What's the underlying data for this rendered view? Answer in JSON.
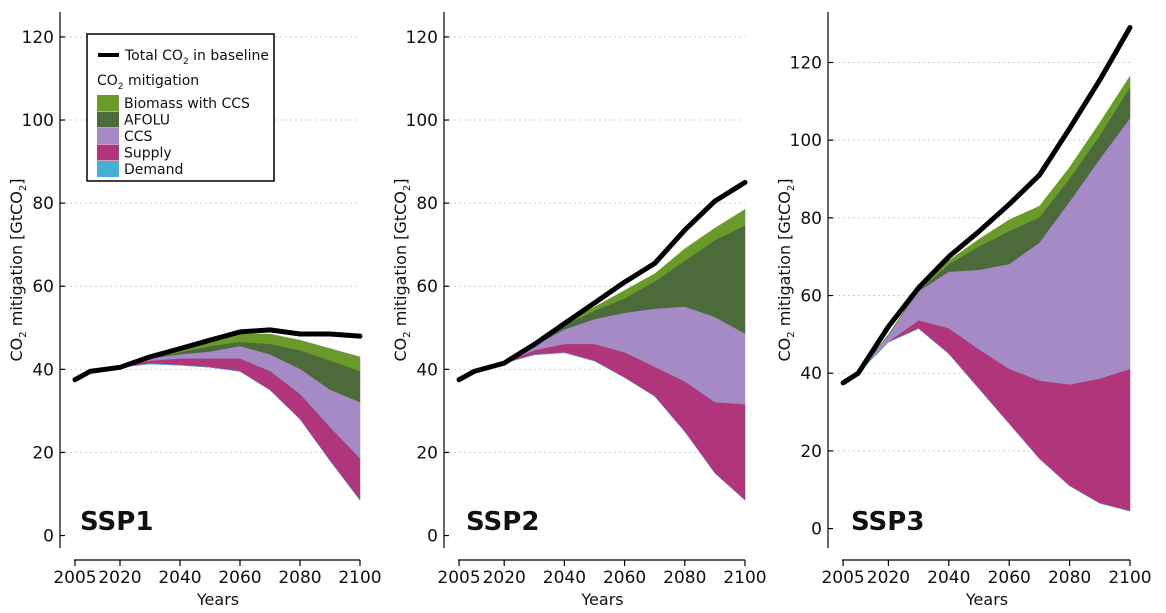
{
  "colors": {
    "biomass_ccs": "#6a9a2a",
    "afolu": "#4c6a3a",
    "ccs": "#a58ac6",
    "supply": "#b0357a",
    "demand": "#45b0d3",
    "baseline": "#000000"
  },
  "legend": {
    "baseline_label": "Total CO",
    "baseline_sub": "2",
    "baseline_suffix": " in baseline",
    "group_title": "CO",
    "group_title_sub": "2",
    "group_title_suffix": " mitigation",
    "items": [
      {
        "key": "biomass_ccs",
        "label": "Biomass with CCS"
      },
      {
        "key": "afolu",
        "label": "AFOLU"
      },
      {
        "key": "ccs",
        "label": "CCS"
      },
      {
        "key": "supply",
        "label": "Supply"
      },
      {
        "key": "demand",
        "label": "Demand"
      }
    ]
  },
  "ylabel": {
    "pre": "CO",
    "sub1": "2",
    "mid": " mitigation [GtCO",
    "sub2": "2",
    "post": "]"
  },
  "chart_data": [
    {
      "type": "area",
      "panel_label": "SSP1",
      "xlabel": "Years",
      "xticks": [
        "2005",
        "2020",
        "2040",
        "2060",
        "2080",
        "2100"
      ],
      "xtick_values": [
        2005,
        2020,
        2040,
        2060,
        2080,
        2100
      ],
      "yticks": [
        0,
        20,
        40,
        60,
        80,
        100,
        120
      ],
      "ylim": [
        -3,
        126
      ],
      "xlim": [
        2000,
        2100
      ],
      "x": [
        2005,
        2010,
        2020,
        2030,
        2040,
        2050,
        2060,
        2070,
        2080,
        2090,
        2100
      ],
      "series": [
        {
          "key": "demand",
          "values": [
            37.5,
            39.5,
            40.5,
            41.3,
            41,
            40.5,
            39.5,
            35,
            28,
            18,
            8.5
          ]
        },
        {
          "key": "supply",
          "values": [
            37.5,
            39.5,
            40.5,
            42,
            42.5,
            42.5,
            42.5,
            39.5,
            34,
            26,
            18.5
          ]
        },
        {
          "key": "ccs",
          "values": [
            37.5,
            39.5,
            40.5,
            42.5,
            43.5,
            44.2,
            45.5,
            43.5,
            40,
            35,
            32
          ]
        },
        {
          "key": "afolu",
          "values": [
            37.5,
            39.5,
            40.5,
            42.5,
            44,
            45.5,
            46.5,
            46,
            44.5,
            42,
            39.5
          ]
        },
        {
          "key": "biomass_ccs",
          "values": [
            37.5,
            39.5,
            40.5,
            42.5,
            44.5,
            46.5,
            48.5,
            48.5,
            47,
            45,
            43
          ]
        }
      ],
      "baseline": [
        37.5,
        39.5,
        40.5,
        43,
        45,
        47,
        49,
        49.5,
        48.5,
        48.5,
        48
      ]
    },
    {
      "type": "area",
      "panel_label": "SSP2",
      "xlabel": "Years",
      "xticks": [
        "2005",
        "2020",
        "2040",
        "2060",
        "2080",
        "2100"
      ],
      "xtick_values": [
        2005,
        2020,
        2040,
        2060,
        2080,
        2100
      ],
      "yticks": [
        0,
        20,
        40,
        60,
        80,
        100,
        120
      ],
      "ylim": [
        -3,
        126
      ],
      "xlim": [
        2000,
        2100
      ],
      "x": [
        2005,
        2010,
        2020,
        2030,
        2040,
        2050,
        2060,
        2070,
        2080,
        2090,
        2100
      ],
      "series": [
        {
          "key": "demand",
          "values": [
            37.5,
            39.5,
            41.5,
            43.5,
            44,
            42,
            38,
            33.5,
            25,
            15,
            8.5
          ]
        },
        {
          "key": "supply",
          "values": [
            37.5,
            39.5,
            41.5,
            44.5,
            46,
            46,
            44,
            40.5,
            37,
            32,
            31.5
          ]
        },
        {
          "key": "ccs",
          "values": [
            37.5,
            39.5,
            41.5,
            45.5,
            49.5,
            52,
            53.5,
            54.5,
            55,
            52.5,
            48.5
          ]
        },
        {
          "key": "afolu",
          "values": [
            37.5,
            39.5,
            41.5,
            45.5,
            50.5,
            54,
            57,
            61,
            66,
            71,
            74.5
          ]
        },
        {
          "key": "biomass_ccs",
          "values": [
            37.5,
            39.5,
            41.5,
            46,
            51,
            55,
            59,
            63,
            69,
            74,
            78.5
          ]
        }
      ],
      "baseline": [
        37.5,
        39.5,
        41.5,
        46,
        51,
        56,
        61,
        65.5,
        73.5,
        80.5,
        85
      ]
    },
    {
      "type": "area",
      "panel_label": "SSP3",
      "xlabel": "Years",
      "xticks": [
        "2005",
        "2020",
        "2040",
        "2060",
        "2080",
        "2100"
      ],
      "xtick_values": [
        2005,
        2020,
        2040,
        2060,
        2080,
        2100
      ],
      "yticks": [
        0,
        20,
        40,
        60,
        80,
        100,
        120
      ],
      "ylim": [
        -5,
        133
      ],
      "xlim": [
        2000,
        2100
      ],
      "x": [
        2005,
        2010,
        2020,
        2030,
        2040,
        2050,
        2060,
        2070,
        2080,
        2090,
        2100
      ],
      "series": [
        {
          "key": "demand",
          "values": [
            37.5,
            40,
            48,
            51.5,
            45,
            36,
            27,
            18,
            11,
            6.5,
            4.5
          ]
        },
        {
          "key": "supply",
          "values": [
            37.5,
            40,
            48,
            53.5,
            51.5,
            46,
            41,
            38,
            37,
            38.5,
            41
          ]
        },
        {
          "key": "ccs",
          "values": [
            37.5,
            40,
            49.5,
            61,
            66,
            66.5,
            68,
            73.5,
            84,
            95,
            105.5
          ]
        },
        {
          "key": "afolu",
          "values": [
            37.5,
            40,
            49.5,
            61,
            68,
            72.5,
            76.5,
            80,
            90,
            101,
            113.5
          ]
        },
        {
          "key": "biomass_ccs",
          "values": [
            37.5,
            40,
            50,
            61.5,
            69,
            74.5,
            79.5,
            83,
            93,
            104.5,
            116.5
          ]
        }
      ],
      "baseline": [
        37.5,
        40,
        52,
        62,
        70,
        76.5,
        83.5,
        91,
        103,
        115.5,
        129
      ]
    }
  ]
}
